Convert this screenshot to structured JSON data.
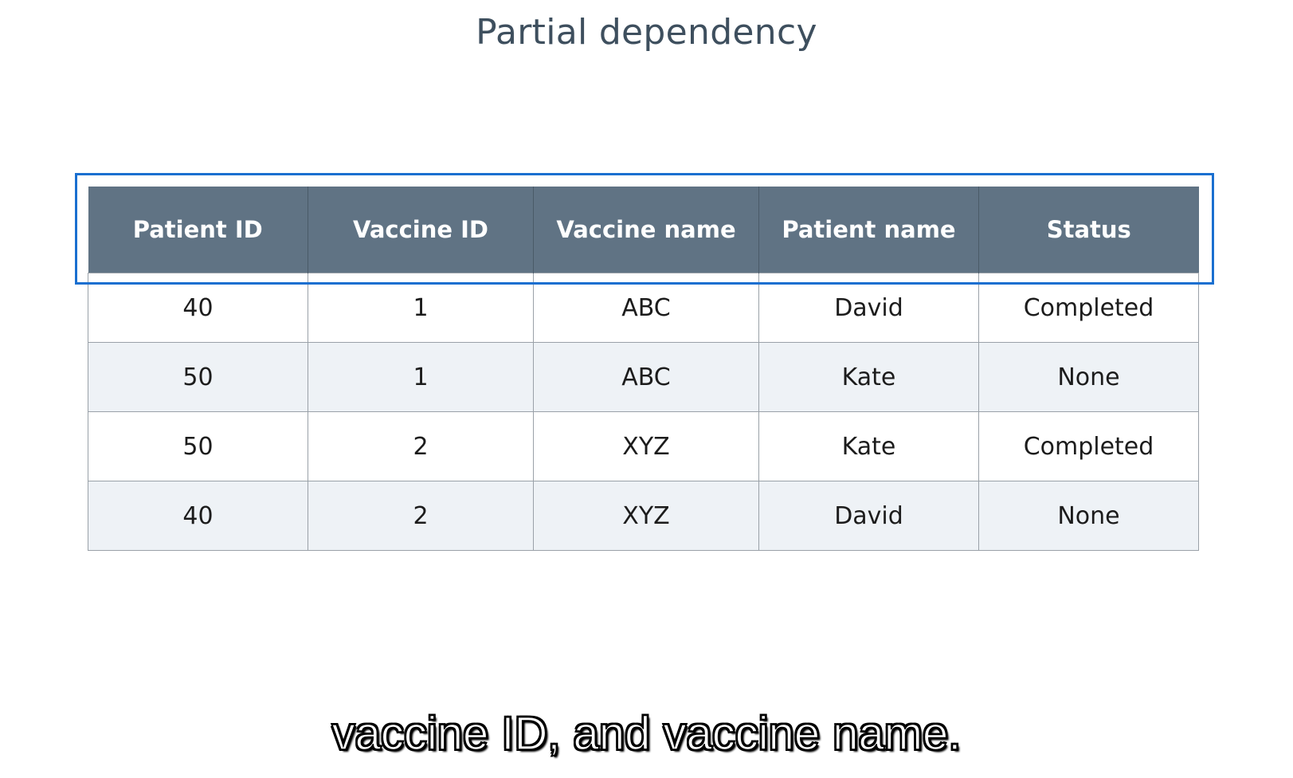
{
  "slide": {
    "title": "Partial dependency"
  },
  "table": {
    "headers": [
      "Patient ID",
      "Vaccine ID",
      "Vaccine name",
      "Patient name",
      "Status"
    ],
    "rows": [
      [
        "40",
        "1",
        "ABC",
        "David",
        "Completed"
      ],
      [
        "50",
        "1",
        "ABC",
        "Kate",
        "None"
      ],
      [
        "50",
        "2",
        "XYZ",
        "Kate",
        "Completed"
      ],
      [
        "40",
        "2",
        "XYZ",
        "David",
        "None"
      ]
    ]
  },
  "caption": {
    "text": "vaccine ID, and vaccine name."
  },
  "colors": {
    "header_bg": "#607384",
    "highlight_border": "#1a6fd0",
    "alt_row_bg": "#eef2f6",
    "title_color": "#3e4f5e"
  }
}
